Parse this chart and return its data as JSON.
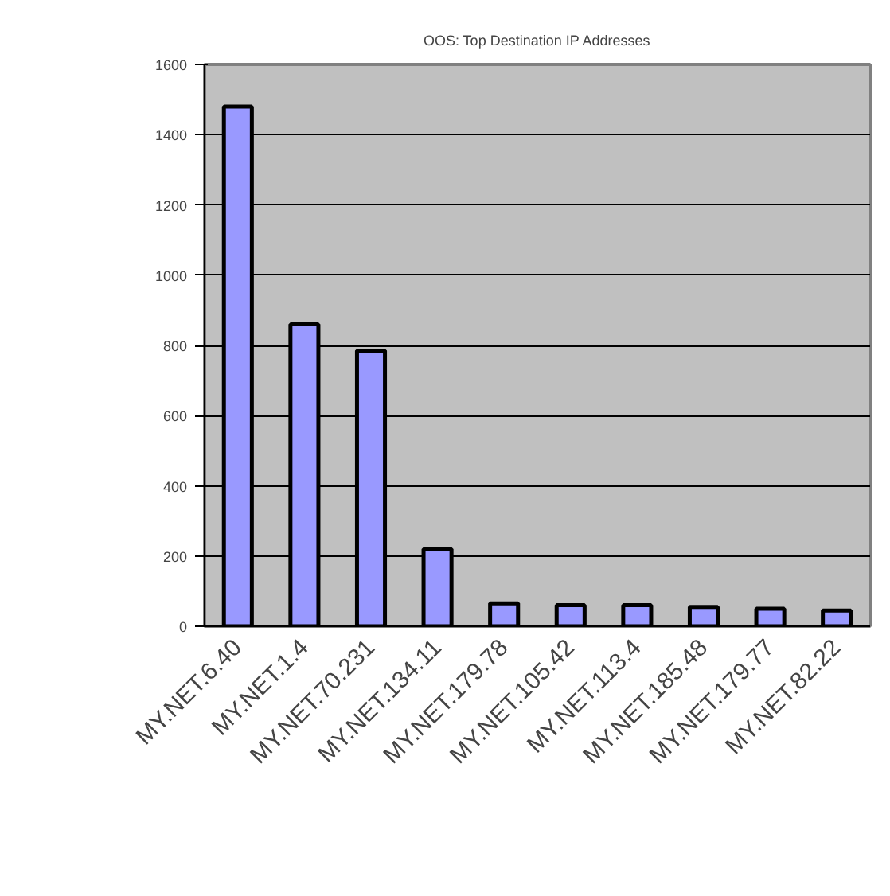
{
  "chart_data": {
    "type": "bar",
    "title": "OOS: Top Destination IP Addresses",
    "categories": [
      "MY.NET.6.40",
      "MY.NET.1.4",
      "MY.NET.70.231",
      "MY.NET.134.11",
      "MY.NET.179.78",
      "MY.NET.105.42",
      "MY.NET.113.4",
      "MY.NET.185.48",
      "MY.NET.179.77",
      "MY.NET.82.22"
    ],
    "values": [
      1480,
      860,
      785,
      220,
      65,
      60,
      60,
      55,
      50,
      45
    ],
    "color": "#9999ff",
    "ylim": [
      0,
      1600
    ],
    "yticks": [
      0,
      200,
      400,
      600,
      800,
      1000,
      1200,
      1400,
      1600
    ],
    "grid": "y"
  }
}
